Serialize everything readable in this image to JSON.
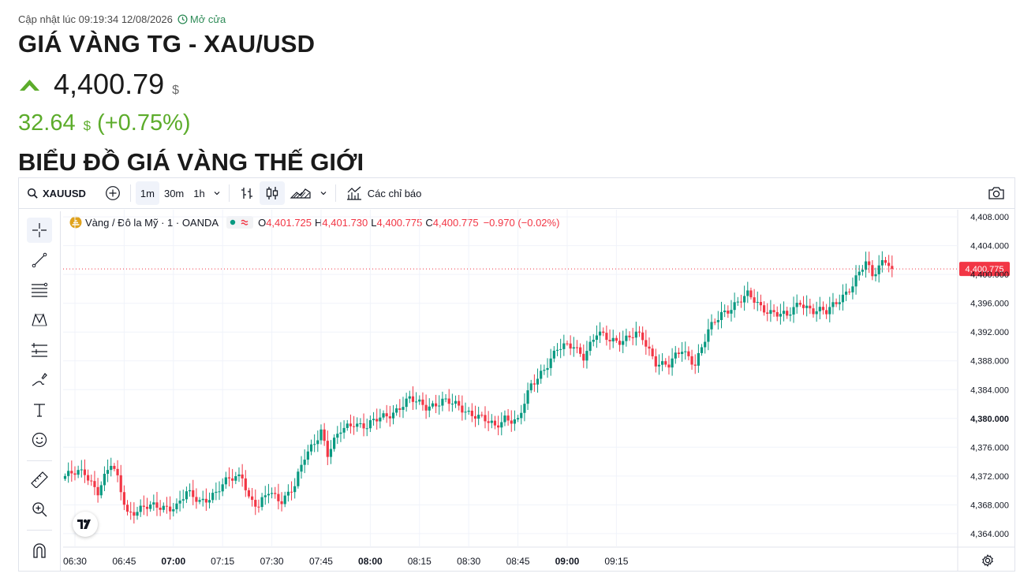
{
  "header": {
    "updated_text": "Cập nhật lúc 09:19:34 12/08/2026",
    "market_status": "Mở cửa",
    "title": "GIÁ VÀNG TG - XAU/USD",
    "price": "4,400.79",
    "price_currency": "$",
    "change_value": "32.64",
    "change_currency": "$",
    "change_percent": "(+0.75%)",
    "section_title": "BIỂU ĐỒ GIÁ VÀNG THẾ GIỚI",
    "up_color": "#5cac2b"
  },
  "toolbar": {
    "symbol": "XAUUSD",
    "intervals": [
      "1m",
      "30m",
      "1h"
    ],
    "active_interval": "1m",
    "indicators_label": "Các chỉ báo",
    "icons": [
      "search-icon",
      "add-symbol-icon",
      "chevron-down-icon",
      "bar-chart-icon",
      "candles-icon",
      "area-chart-icon",
      "chevron-down-icon",
      "indicators-icon",
      "camera-icon"
    ]
  },
  "drawing_tools": [
    "crosshair-icon",
    "trend-line-icon",
    "fib-icon",
    "pattern-icon",
    "projection-icon",
    "brush-icon",
    "text-icon",
    "emoji-icon",
    "ruler-icon",
    "zoom-icon",
    "magnet-icon"
  ],
  "legend": {
    "name": "Vàng / Đô la Mỹ · 1 · OANDA",
    "o_label": "O",
    "o": "4,401.725",
    "h_label": "H",
    "h": "4,401.730",
    "l_label": "L",
    "l": "4,400.775",
    "c_label": "C",
    "c": "4,400.775",
    "change": "−0.970 (−0.02%)"
  },
  "chart_data": {
    "type": "candlestick",
    "symbol": "XAUUSD",
    "interval": "1m",
    "x_ticks": [
      "06:30",
      "06:45",
      "07:00",
      "07:15",
      "07:30",
      "07:45",
      "08:00",
      "08:15",
      "08:30",
      "08:45",
      "09:00",
      "09:15"
    ],
    "x_ticks_bold": [
      "07:00",
      "08:00",
      "09:00"
    ],
    "y_ticks": [
      "4,408.000",
      "4,404.000",
      "4,400.000",
      "4,396.000",
      "4,392.000",
      "4,388.000",
      "4,384.000",
      "4,380.000",
      "4,376.000",
      "4,372.000",
      "4,368.000",
      "4,364.000"
    ],
    "ylim": [
      4363,
      4409
    ],
    "last_price_label": "4,400.775",
    "last_price": 4400.775,
    "up_color": "#089981",
    "down_color": "#f23645",
    "close_path": [
      [
        0,
        4372.0
      ],
      [
        6,
        4372.5
      ],
      [
        10,
        4370.0
      ],
      [
        14,
        4373.5
      ],
      [
        16,
        4371.5
      ],
      [
        19,
        4367.0
      ],
      [
        24,
        4367.5
      ],
      [
        30,
        4367.8
      ],
      [
        34,
        4367.8
      ],
      [
        37,
        4369.5
      ],
      [
        41,
        4368.6
      ],
      [
        46,
        4369.6
      ],
      [
        50,
        4371.5
      ],
      [
        54,
        4372.3
      ],
      [
        56,
        4369.0
      ],
      [
        59,
        4367.5
      ],
      [
        62,
        4369.8
      ],
      [
        66,
        4368.8
      ],
      [
        70,
        4370.5
      ],
      [
        73,
        4374.5
      ],
      [
        78,
        4378.5
      ],
      [
        80,
        4375.0
      ],
      [
        84,
        4378.2
      ],
      [
        88,
        4379.6
      ],
      [
        92,
        4378.8
      ],
      [
        96,
        4380.0
      ],
      [
        100,
        4381.0
      ],
      [
        105,
        4382.5
      ],
      [
        110,
        4381.8
      ],
      [
        115,
        4382.3
      ],
      [
        120,
        4381.7
      ],
      [
        125,
        4380.5
      ],
      [
        129,
        4379.3
      ],
      [
        131,
        4378.8
      ],
      [
        134,
        4380.3
      ],
      [
        138,
        4379.5
      ],
      [
        142,
        4384.5
      ],
      [
        145,
        4386.5
      ],
      [
        150,
        4389.5
      ],
      [
        155,
        4390.2
      ],
      [
        158,
        4388.8
      ],
      [
        162,
        4391.6
      ],
      [
        166,
        4391.0
      ],
      [
        170,
        4391.0
      ],
      [
        174,
        4391.5
      ],
      [
        176,
        4391.0
      ],
      [
        180,
        4388.0
      ],
      [
        184,
        4387.3
      ],
      [
        188,
        4389.5
      ],
      [
        192,
        4387.8
      ],
      [
        196,
        4392.0
      ],
      [
        200,
        4394.5
      ],
      [
        204,
        4396.0
      ],
      [
        208,
        4397.0
      ],
      [
        212,
        4395.5
      ],
      [
        216,
        4394.8
      ],
      [
        220,
        4394.0
      ],
      [
        224,
        4396.3
      ],
      [
        228,
        4395.0
      ],
      [
        232,
        4394.6
      ],
      [
        236,
        4396.8
      ],
      [
        240,
        4398.5
      ],
      [
        244,
        4401.5
      ],
      [
        246,
        4400.0
      ],
      [
        249,
        4402.0
      ],
      [
        250,
        4402.2
      ],
      [
        252,
        4400.775
      ]
    ]
  }
}
